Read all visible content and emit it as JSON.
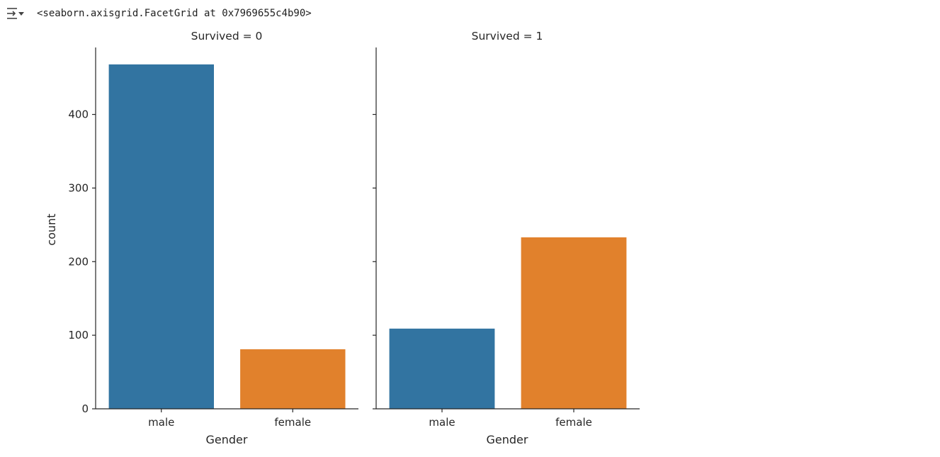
{
  "output": {
    "icon": "output-collapse-icon",
    "text": "<seaborn.axisgrid.FacetGrid at 0x7969655c4b90>"
  },
  "colors": {
    "male": "#3274a1",
    "female": "#e1812c",
    "axis": "#262626"
  },
  "chart_data": [
    {
      "type": "bar",
      "title": "Survived = 0",
      "xlabel": "Gender",
      "ylabel": "count",
      "categories": [
        "male",
        "female"
      ],
      "values": [
        468,
        81
      ],
      "ylim": [
        0,
        491
      ],
      "yticks": [
        0,
        100,
        200,
        300,
        400
      ],
      "grid": false
    },
    {
      "type": "bar",
      "title": "Survived = 1",
      "xlabel": "Gender",
      "ylabel": "",
      "categories": [
        "male",
        "female"
      ],
      "values": [
        109,
        233
      ],
      "ylim": [
        0,
        491
      ],
      "yticks": [
        0,
        100,
        200,
        300,
        400
      ],
      "grid": false
    }
  ]
}
